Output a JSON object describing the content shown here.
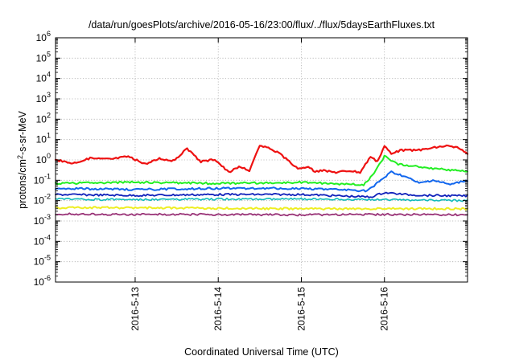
{
  "chart_data": {
    "type": "line",
    "title": "/data/run/goesPlots/archive/2016-05-16/23:00/flux/../flux/5daysEarthFluxes.txt",
    "xlabel": "Coordinated Universal Time (UTC)",
    "ylabel": "protons/cm²-s-sr-MeV",
    "ylabel_parts": {
      "pre": "protons/cm",
      "sup": "2",
      "post": "-s-sr-MeV"
    },
    "y_scale": "log",
    "ylim": [
      1e-06,
      1000000.0
    ],
    "y_ticks": [
      {
        "base": "10",
        "exp": "-6",
        "value": 1e-06
      },
      {
        "base": "10",
        "exp": "-5",
        "value": 1e-05
      },
      {
        "base": "10",
        "exp": "-4",
        "value": 0.0001
      },
      {
        "base": "10",
        "exp": "-3",
        "value": 0.001
      },
      {
        "base": "10",
        "exp": "-2",
        "value": 0.01
      },
      {
        "base": "10",
        "exp": "-1",
        "value": 0.1
      },
      {
        "base": "10",
        "exp": "0",
        "value": 1.0
      },
      {
        "base": "10",
        "exp": "1",
        "value": 10.0
      },
      {
        "base": "10",
        "exp": "2",
        "value": 100.0
      },
      {
        "base": "10",
        "exp": "3",
        "value": 1000.0
      },
      {
        "base": "10",
        "exp": "4",
        "value": 10000.0
      },
      {
        "base": "10",
        "exp": "5",
        "value": 100000.0
      },
      {
        "base": "10",
        "exp": "6",
        "value": 1000000.0
      }
    ],
    "xlim": [
      "2016-05-12 01:00",
      "2016-05-17 00:00"
    ],
    "x_ticks": [
      {
        "label": "2016-5-13",
        "value": "2016-05-13 00:00"
      },
      {
        "label": "2016-5-14",
        "value": "2016-05-14 00:00"
      },
      {
        "label": "2016-5-15",
        "value": "2016-05-15 00:00"
      },
      {
        "label": "2016-5-16",
        "value": "2016-05-16 00:00"
      }
    ],
    "grid": true,
    "legend": "none",
    "series": [
      {
        "color": "#ee1111",
        "stroke_width": 2.2,
        "x": [
          "2016-05-12 01:00",
          "2016-05-12 06:00",
          "2016-05-12 11:00",
          "2016-05-12 17:00",
          "2016-05-12 22:00",
          "2016-05-13 03:00",
          "2016-05-13 07:00",
          "2016-05-13 11:00",
          "2016-05-13 15:00",
          "2016-05-13 19:00",
          "2016-05-13 23:00",
          "2016-05-14 03:00",
          "2016-05-14 06:00",
          "2016-05-14 09:00",
          "2016-05-14 12:00",
          "2016-05-14 14:00",
          "2016-05-14 17:00",
          "2016-05-14 20:00",
          "2016-05-14 23:00",
          "2016-05-15 02:00",
          "2016-05-15 04:00",
          "2016-05-15 06:00",
          "2016-05-15 10:00",
          "2016-05-15 14:00",
          "2016-05-15 17:00",
          "2016-05-15 20:00",
          "2016-05-15 22:00",
          "2016-05-16 00:00",
          "2016-05-16 02:00",
          "2016-05-16 05:00",
          "2016-05-16 10:00",
          "2016-05-16 14:00",
          "2016-05-16 18:00",
          "2016-05-16 21:00",
          "2016-05-17 00:00"
        ],
        "values": [
          1.0,
          0.7,
          1.2,
          1.1,
          1.5,
          0.6,
          1.2,
          0.9,
          3.5,
          0.8,
          1.1,
          0.25,
          0.45,
          0.3,
          5.0,
          4.0,
          2.5,
          1.0,
          0.35,
          0.5,
          0.25,
          0.3,
          0.25,
          0.3,
          0.25,
          1.5,
          0.8,
          5.0,
          2.0,
          3.0,
          3.0,
          4.0,
          5.0,
          4.0,
          2.0
        ]
      },
      {
        "color": "#22ee22",
        "stroke_width": 2.0,
        "x": [
          "2016-05-12 01:00",
          "2016-05-13 00:00",
          "2016-05-14 00:00",
          "2016-05-15 00:00",
          "2016-05-15 18:00",
          "2016-05-15 21:00",
          "2016-05-15 23:00",
          "2016-05-16 00:00",
          "2016-05-16 04:00",
          "2016-05-16 10:00",
          "2016-05-16 16:00",
          "2016-05-17 00:00"
        ],
        "values": [
          0.07,
          0.08,
          0.07,
          0.08,
          0.06,
          0.2,
          0.8,
          1.5,
          0.6,
          0.45,
          0.35,
          0.28
        ]
      },
      {
        "color": "#1166ee",
        "stroke_width": 2.0,
        "x": [
          "2016-05-12 01:00",
          "2016-05-13 00:00",
          "2016-05-14 00:00",
          "2016-05-15 00:00",
          "2016-05-15 19:00",
          "2016-05-15 23:00",
          "2016-05-16 02:00",
          "2016-05-16 06:00",
          "2016-05-16 10:00",
          "2016-05-16 14:00",
          "2016-05-16 19:00",
          "2016-05-17 00:00"
        ],
        "values": [
          0.04,
          0.035,
          0.04,
          0.04,
          0.03,
          0.1,
          0.25,
          0.15,
          0.07,
          0.1,
          0.06,
          0.1
        ]
      },
      {
        "color": "#1122bb",
        "stroke_width": 1.8,
        "x": [
          "2016-05-12 01:00",
          "2016-05-13 00:00",
          "2016-05-14 00:00",
          "2016-05-15 00:00",
          "2016-05-15 20:00",
          "2016-05-16 00:00",
          "2016-05-16 06:00",
          "2016-05-16 12:00",
          "2016-05-17 00:00"
        ],
        "values": [
          0.02,
          0.018,
          0.02,
          0.02,
          0.015,
          0.025,
          0.02,
          0.018,
          0.017
        ]
      },
      {
        "color": "#11bbbb",
        "stroke_width": 1.6,
        "x": [
          "2016-05-12 01:00",
          "2016-05-13 00:00",
          "2016-05-14 00:00",
          "2016-05-15 00:00",
          "2016-05-16 00:00",
          "2016-05-17 00:00"
        ],
        "values": [
          0.012,
          0.011,
          0.012,
          0.012,
          0.011,
          0.01
        ]
      },
      {
        "color": "#eeee22",
        "stroke_width": 2.0,
        "x": [
          "2016-05-12 01:00",
          "2016-05-13 00:00",
          "2016-05-14 00:00",
          "2016-05-15 00:00",
          "2016-05-16 00:00",
          "2016-05-17 00:00"
        ],
        "values": [
          0.0045,
          0.0045,
          0.0042,
          0.004,
          0.004,
          0.004
        ]
      },
      {
        "color": "#993377",
        "stroke_width": 1.8,
        "x": [
          "2016-05-12 01:00",
          "2016-05-13 00:00",
          "2016-05-14 00:00",
          "2016-05-15 00:00",
          "2016-05-16 00:00",
          "2016-05-17 00:00"
        ],
        "values": [
          0.0022,
          0.0021,
          0.0021,
          0.002,
          0.0021,
          0.002
        ]
      }
    ]
  }
}
